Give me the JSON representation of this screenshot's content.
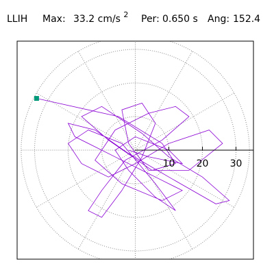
{
  "chart_data": {
    "type": "polar-orbit",
    "title": {
      "station": "LLIH",
      "max_label": "Max:",
      "max_value": "33.2 cm/s",
      "max_exp": "2",
      "per_label": "Per:",
      "per_value": "0.650 s",
      "ang_label": "Ang:",
      "ang_value": "152.4"
    },
    "x": [
      -29.4,
      -5,
      8,
      12,
      5,
      -8,
      -16,
      -10,
      2,
      10,
      20,
      28,
      24,
      10,
      -2,
      -12,
      -20,
      -18,
      -6,
      6,
      14,
      8,
      -4,
      -12,
      -6,
      4,
      12,
      16,
      8,
      -3,
      -10,
      -14,
      -10,
      -4,
      2,
      6,
      2,
      -4,
      -2,
      4,
      16,
      26,
      22,
      10,
      0,
      -8,
      -16,
      -20,
      -14,
      -4,
      6,
      12,
      6,
      -2,
      -6,
      0,
      10,
      14,
      4,
      -2
    ],
    "series": [
      {
        "color": "#8a00d4",
        "values": [
          15.4,
          10,
          2,
          -4,
          -6,
          3,
          10,
          13,
          5,
          -2,
          -8,
          -15,
          -16,
          -8,
          -1,
          6,
          8,
          4,
          -2,
          -8,
          -12,
          -15,
          -10,
          -3,
          6,
          11,
          13,
          10,
          3,
          -3,
          -12,
          -18,
          -20,
          -12,
          -2,
          8,
          14,
          12,
          2,
          -6,
          -6,
          2,
          6,
          2,
          -4,
          -8,
          -4,
          2,
          6,
          2,
          -10,
          -18,
          -14,
          -6,
          0,
          4,
          0,
          -4,
          -2,
          0
        ]
      }
    ],
    "max_marker_color": "#009a7a",
    "xlim": [
      -35.2,
      35.2
    ],
    "ylim": [
      -32.45,
      32.45
    ],
    "rlim": [
      0,
      34
    ],
    "rticks": [
      10,
      20,
      30
    ],
    "angle_step": 30,
    "grid": true
  }
}
